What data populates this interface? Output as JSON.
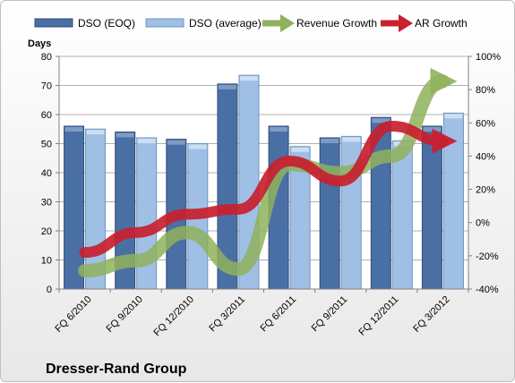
{
  "chart_data": {
    "type": "bar",
    "company": "Dresser-Rand Group",
    "ylabel": "Days",
    "categories": [
      "FQ 6/2010",
      "FQ 9/2010",
      "FQ 12/2010",
      "FQ 3/2011",
      "FQ 6/2011",
      "FQ 9/2011",
      "FQ 12/2011",
      "FQ 3/2012"
    ],
    "ylim": [
      0,
      80
    ],
    "yticks": [
      0,
      10,
      20,
      30,
      40,
      50,
      60,
      70,
      80
    ],
    "y2lim": [
      -40,
      100
    ],
    "y2ticks": [
      -40,
      -20,
      0,
      20,
      40,
      60,
      80,
      100
    ],
    "y2tick_labels": [
      "-40%",
      "-20%",
      "0%",
      "20%",
      "40%",
      "60%",
      "80%",
      "100%"
    ],
    "grid": true,
    "legend_position": "top",
    "bar_series": [
      {
        "name": "DSO (EOQ)",
        "color": "#4a6fa5",
        "values": [
          56,
          54,
          51.5,
          70.5,
          56,
          52,
          59,
          56
        ]
      },
      {
        "name": "DSO (average)",
        "color": "#9fc0e4",
        "values": [
          55,
          52,
          50,
          73.5,
          49,
          52.5,
          51,
          60.5
        ]
      }
    ],
    "line_series": [
      {
        "name": "Revenue Growth",
        "color": "#8fb25c",
        "axis": "right",
        "values": [
          -29,
          -23,
          -6,
          -28,
          35,
          30,
          40,
          85
        ]
      },
      {
        "name": "AR Growth",
        "color": "#c8202f",
        "axis": "right",
        "values": [
          -18,
          -6,
          5,
          8,
          37,
          25,
          58,
          49
        ]
      }
    ]
  }
}
